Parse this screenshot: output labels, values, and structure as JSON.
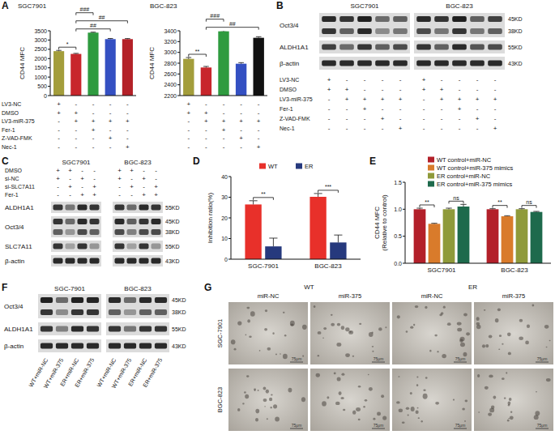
{
  "panel_labels": [
    "A",
    "B",
    "C",
    "D",
    "E",
    "F",
    "G"
  ],
  "chart_data": [
    {
      "type": "bar",
      "title": "SGC7901",
      "y_label": [
        "CD44 MFC"
      ],
      "categories": [
        null,
        null,
        null,
        null,
        null
      ],
      "values": [
        2400,
        2250,
        3400,
        3050,
        3050
      ],
      "errors": [
        40,
        30,
        25,
        35,
        30
      ],
      "colors": [
        "#a39d3b",
        "#c8262c",
        "#2f9b3f",
        "#3450c2",
        "#b42128"
      ],
      "ylim": [
        0,
        3500
      ],
      "yticks": [
        0,
        500,
        1000,
        1500,
        2000,
        2500,
        3000,
        3500
      ],
      "significance": [
        {
          "from": 0,
          "to": 1,
          "label": "*"
        },
        {
          "from": 1,
          "to": 3,
          "label": "##"
        },
        {
          "from": 1,
          "to": 4,
          "label": "##"
        },
        {
          "from": 1,
          "to": 2,
          "label": "###"
        }
      ]
    },
    {
      "type": "bar",
      "title": "BGC-823",
      "y_label": [
        "CD44 MFC"
      ],
      "categories": [
        null,
        null,
        null,
        null,
        null
      ],
      "values": [
        2880,
        2720,
        3390,
        2790,
        3270
      ],
      "errors": [
        25,
        20,
        15,
        20,
        20
      ],
      "colors": [
        "#a39d3b",
        "#c8262c",
        "#2f9b3f",
        "#3450c2",
        "#111111"
      ],
      "ylim": [
        2200,
        3400
      ],
      "yticks": [
        2200,
        2400,
        2600,
        2800,
        3000,
        3200,
        3400
      ],
      "significance": [
        {
          "from": 0,
          "to": 1,
          "label": "**"
        },
        {
          "from": 1,
          "to": 4,
          "label": "##"
        },
        {
          "from": 1,
          "to": 2,
          "label": "###"
        }
      ]
    },
    {
      "type": "bar",
      "y_label": [
        "Inhibition ratio(%)"
      ],
      "categories": [
        "SGC-7901",
        "BGC-823"
      ],
      "series": [
        {
          "name": "WT",
          "color": "#e8302a",
          "values": [
            26.5,
            30.2
          ],
          "errors": [
            1.8,
            1.6
          ]
        },
        {
          "name": "ER",
          "color": "#26397d",
          "values": [
            6.2,
            8.1
          ],
          "errors": [
            4,
            3.6
          ]
        }
      ],
      "ylim": [
        0,
        40
      ],
      "yticks": [
        0,
        10,
        20,
        30,
        40
      ],
      "legend": "top",
      "significance": [
        {
          "category": 0,
          "from": 0,
          "to": 1,
          "label": "**"
        },
        {
          "category": 1,
          "from": 0,
          "to": 1,
          "label": "***"
        }
      ]
    },
    {
      "type": "bar",
      "y_label": [
        "CD44 MFC",
        "(Relative to control)"
      ],
      "categories": [
        "SGC7901",
        "BGC-823"
      ],
      "series": [
        {
          "name": "WT control+miR-NC",
          "color": "#b3202a",
          "values": [
            1.0,
            1.0
          ],
          "errors": [
            0.02,
            0.01
          ]
        },
        {
          "name": "WT control+miR-375 mimics",
          "color": "#d97b2b",
          "values": [
            0.73,
            0.87
          ],
          "errors": [
            0.01,
            0.01
          ]
        },
        {
          "name": "ER control+miR-NC",
          "color": "#8f9a3a",
          "values": [
            1.0,
            1.0
          ],
          "errors": [
            0.02,
            0.01
          ]
        },
        {
          "name": "ER control+miR-375 mimics",
          "color": "#1e6a4c",
          "values": [
            1.05,
            0.95
          ],
          "errors": [
            0.04,
            0.01
          ]
        }
      ],
      "ylim": [
        0,
        1.5
      ],
      "yticks": [
        {
          "value": 0,
          "label": "0.0"
        },
        0.5,
        {
          "value": 1,
          "label": "1.0"
        },
        1.5
      ],
      "legend": "top-right",
      "significance": [
        {
          "category": 0,
          "from": 0,
          "to": 1,
          "label": "**"
        },
        {
          "category": 0,
          "from": 2,
          "to": 3,
          "label": "ns"
        },
        {
          "category": 1,
          "from": 0,
          "to": 1,
          "label": "**"
        },
        {
          "category": 1,
          "from": 2,
          "to": 3,
          "label": "ns"
        }
      ]
    }
  ],
  "panel_A_treatments": {
    "rows": [
      {
        "label": "LV3-NC",
        "marks": [
          "+",
          "-",
          "-",
          "-",
          "-"
        ]
      },
      {
        "label": "DMSO",
        "marks": [
          "+",
          "+",
          "-",
          "-",
          "-"
        ]
      },
      {
        "label": "LV3-miR-375",
        "marks": [
          "-",
          "+",
          "+",
          "+",
          "+"
        ]
      },
      {
        "label": "Fer-1",
        "marks": [
          "-",
          "-",
          "+",
          "-",
          "-"
        ]
      },
      {
        "label": "Z-VAD-FMK",
        "marks": [
          "-",
          "-",
          "-",
          "+",
          "-"
        ]
      },
      {
        "label": "Nec-1",
        "marks": [
          "-",
          "-",
          "-",
          "-",
          "+"
        ]
      }
    ]
  },
  "blots": [
    {
      "columns": [
        "SGC7901",
        "BGC-823"
      ],
      "rows": [
        {
          "label": "Oct3/4",
          "bands": [
            {
              "size": "45KD",
              "intensity": [
                0.85,
                0.8,
                0.9,
                0.55,
                0.6,
                0.85,
                0.8,
                0.9,
                0.6,
                0.75
              ]
            },
            {
              "size": "38KD",
              "intensity": [
                0.8,
                0.6,
                0.85,
                0.4,
                0.5,
                0.7,
                0.5,
                0.8,
                0.5,
                0.6
              ]
            }
          ]
        },
        {
          "label": "ALDH1A1",
          "bands": [
            {
              "size": "55KD",
              "intensity": [
                0.75,
                0.55,
                0.8,
                0.6,
                0.7,
                0.8,
                0.6,
                0.85,
                0.65,
                0.7
              ]
            }
          ]
        },
        {
          "label": "β-actin",
          "bands": [
            {
              "size": "43KD",
              "intensity": [
                0.85,
                0.85,
                0.85,
                0.85,
                0.85,
                0.85,
                0.85,
                0.85,
                0.85,
                0.85
              ]
            }
          ]
        }
      ],
      "treatments": [
        {
          "label": "LV3-NC",
          "marks": [
            "+",
            "-",
            "-",
            "-",
            "-",
            "+",
            "-",
            "-",
            "-",
            "-"
          ]
        },
        {
          "label": "DMSO",
          "marks": [
            "+",
            "+",
            "-",
            "-",
            "-",
            "+",
            "+",
            "-",
            "-",
            "-"
          ]
        },
        {
          "label": "LV3-miR-375",
          "marks": [
            "-",
            "+",
            "+",
            "+",
            "+",
            "-",
            "+",
            "+",
            "+",
            "+"
          ]
        },
        {
          "label": "Fer-1",
          "marks": [
            "-",
            "-",
            "+",
            "-",
            "-",
            "-",
            "-",
            "+",
            "-",
            "-"
          ]
        },
        {
          "label": "Z-VAD-FMK",
          "marks": [
            "-",
            "-",
            "-",
            "+",
            "-",
            "-",
            "-",
            "-",
            "+",
            "-"
          ]
        },
        {
          "label": "Nec-1",
          "marks": [
            "-",
            "-",
            "-",
            "-",
            "+",
            "-",
            "-",
            "-",
            "-",
            "+"
          ]
        }
      ]
    },
    {
      "columns": [
        "SGC7901",
        "BGC-823"
      ],
      "treatments": [
        {
          "label": "DMSO",
          "marks": [
            "+",
            "+",
            "-",
            "-",
            "+",
            "+",
            "-",
            "-"
          ]
        },
        {
          "label": "si-NC",
          "marks": [
            "+",
            "-",
            "+",
            "-",
            "+",
            "-",
            "+",
            "-"
          ]
        },
        {
          "label": "si-SLC7A11",
          "marks": [
            "-",
            "+",
            "-",
            "+",
            "-",
            "+",
            "-",
            "+"
          ]
        },
        {
          "label": "Fer-1",
          "marks": [
            "-",
            "-",
            "+",
            "+",
            "-",
            "-",
            "+",
            "+"
          ]
        }
      ],
      "rows": [
        {
          "label": "ALDH1A1",
          "bands": [
            {
              "size": "55KD",
              "intensity": [
                0.8,
                0.5,
                0.85,
                0.8,
                0.8,
                0.55,
                0.85,
                0.8
              ]
            }
          ]
        },
        {
          "label": "Oct3/4",
          "bands": [
            {
              "size": "45KD",
              "intensity": [
                0.8,
                0.55,
                0.85,
                0.8,
                0.85,
                0.6,
                0.8,
                0.85
              ]
            },
            {
              "size": "38KD",
              "intensity": [
                0.6,
                0.35,
                0.7,
                0.6,
                0.7,
                0.45,
                0.7,
                0.7
              ]
            }
          ]
        },
        {
          "label": "SLC7A11",
          "bands": [
            {
              "size": "55KD",
              "intensity": [
                0.8,
                0.3,
                0.8,
                0.35,
                0.8,
                0.3,
                0.8,
                0.35
              ]
            }
          ]
        },
        {
          "label": "β-actin",
          "bands": [
            {
              "size": "43KD",
              "intensity": [
                0.85,
                0.85,
                0.85,
                0.85,
                0.85,
                0.85,
                0.85,
                0.85
              ]
            }
          ]
        }
      ]
    },
    {
      "columns": [
        "SGC-7901",
        "BGC-823"
      ],
      "rows": [
        {
          "label": "Oct3/4",
          "bands": [
            {
              "size": "45KD",
              "intensity": [
                0.9,
                0.55,
                0.9,
                0.88,
                0.85,
                0.55,
                0.85,
                0.85
              ]
            },
            {
              "size": "38KD",
              "intensity": [
                0.8,
                0.4,
                0.8,
                0.8,
                0.6,
                0.35,
                0.6,
                0.6
              ]
            }
          ]
        },
        {
          "label": "ALDH1A1",
          "bands": [
            {
              "size": "55KD",
              "intensity": [
                0.8,
                0.45,
                0.85,
                0.8,
                0.8,
                0.5,
                0.8,
                0.8
              ]
            }
          ]
        },
        {
          "label": "β-actin",
          "bands": [
            {
              "size": "43KD",
              "intensity": [
                0.85,
                0.85,
                0.85,
                0.85,
                0.85,
                0.85,
                0.85,
                0.85
              ]
            }
          ]
        }
      ],
      "lane_labels": [
        "WT+miR-NC",
        "WT+miR-375",
        "ER+miR-NC",
        "ER+miR-375",
        "WT+miR-NC",
        "WT+miR-375",
        "ER+miR-NC",
        "ER+miR-375"
      ]
    }
  ],
  "colony_images": {
    "groups": [
      {
        "label": "WT",
        "columns": [
          "miR-NC",
          "miR-375"
        ]
      },
      {
        "label": "ER",
        "columns": [
          "miR-NC",
          "miR-375"
        ]
      }
    ],
    "rows": [
      "SGC-7901",
      "BGC-823"
    ],
    "scale_bar": "75μm"
  }
}
